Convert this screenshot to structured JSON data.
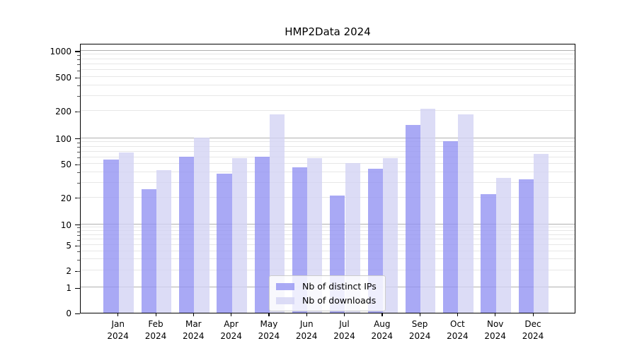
{
  "title": "HMP2Data 2024",
  "chart_data": {
    "type": "bar",
    "title": "HMP2Data 2024",
    "categories": [
      "Jan",
      "Feb",
      "Mar",
      "Apr",
      "May",
      "Jun",
      "Jul",
      "Aug",
      "Sep",
      "Oct",
      "Nov",
      "Dec"
    ],
    "category_year": "2024",
    "series": [
      {
        "name": "Nb of distinct IPs",
        "color": "#9494f3",
        "opacity": 0.8,
        "values": [
          56,
          25,
          61,
          38,
          61,
          46,
          21,
          44,
          140,
          93,
          22,
          33
        ]
      },
      {
        "name": "Nb of downloads",
        "color": "#d3d3f4",
        "opacity": 0.8,
        "values": [
          68,
          42,
          102,
          59,
          185,
          58,
          51,
          58,
          213,
          183,
          34,
          66
        ]
      }
    ],
    "xlabel": "",
    "ylabel": "",
    "yscale": "symlog",
    "yticks": [
      0,
      1,
      2,
      5,
      10,
      20,
      50,
      100,
      200,
      500,
      1000
    ],
    "ytick_labels": [
      "0",
      "1",
      "2",
      "5",
      "10",
      "20",
      "50",
      "100",
      "200",
      "500",
      "1000"
    ],
    "ylim": [
      0,
      1000
    ],
    "grid": true,
    "legend_position": "bottom-center"
  },
  "colors": {
    "major_grid": "#b0b0b0",
    "minor_grid": "#e7e7e7",
    "axis": "#000000",
    "legend_border": "#cccccc"
  }
}
